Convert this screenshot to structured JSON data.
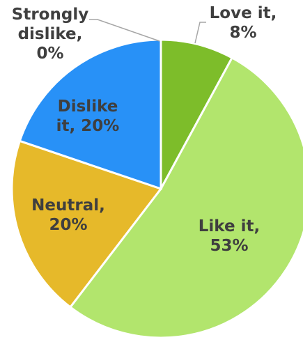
{
  "chart_data": {
    "type": "pie",
    "slices": [
      {
        "name": "Love it",
        "value": 8,
        "label_lines": [
          "Love it,",
          "8%"
        ],
        "color": "#7dbd2a"
      },
      {
        "name": "Like it",
        "value": 53,
        "label_lines": [
          "Like it,",
          "53%"
        ],
        "color": "#b2e56d"
      },
      {
        "name": "Neutral",
        "value": 20,
        "label_lines": [
          "Neutral,",
          "20%"
        ],
        "color": "#e6b92a"
      },
      {
        "name": "Dislike it",
        "value": 20,
        "label_lines": [
          "Dislike",
          "it, 20%"
        ],
        "color": "#2891f7"
      },
      {
        "name": "Strongly dislike",
        "value": 0,
        "label_lines": [
          "Strongly",
          "dislike,",
          "0%"
        ],
        "color": "#7f7f7f"
      }
    ],
    "legend": "none"
  }
}
